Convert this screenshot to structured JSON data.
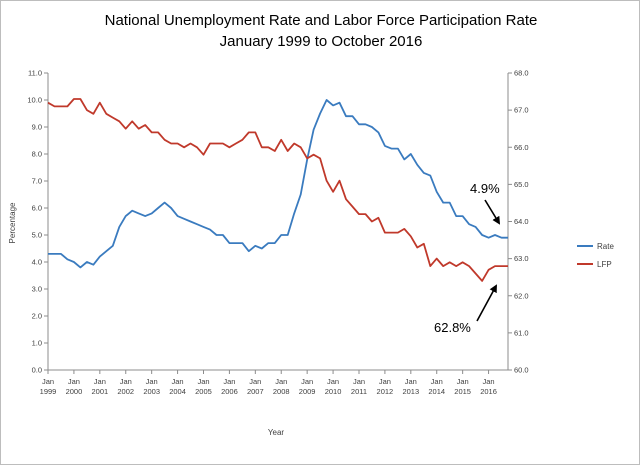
{
  "chart_data": {
    "type": "line",
    "title": "National Unemployment Rate and Labor Force Participation Rate",
    "subtitle": "January 1999 to October 2016",
    "xlabel": "Year",
    "ylabel": "Percentage",
    "x_start": "1999-01",
    "x_end": "2016-10",
    "x_ticks": [
      {
        "month": "Jan",
        "year": "1999"
      },
      {
        "month": "Jan",
        "year": "2000"
      },
      {
        "month": "Jan",
        "year": "2001"
      },
      {
        "month": "Jan",
        "year": "2002"
      },
      {
        "month": "Jan",
        "year": "2003"
      },
      {
        "month": "Jan",
        "year": "2004"
      },
      {
        "month": "Jan",
        "year": "2005"
      },
      {
        "month": "Jan",
        "year": "2006"
      },
      {
        "month": "Jan",
        "year": "2007"
      },
      {
        "month": "Jan",
        "year": "2008"
      },
      {
        "month": "Jan",
        "year": "2009"
      },
      {
        "month": "Jan",
        "year": "2010"
      },
      {
        "month": "Jan",
        "year": "2011"
      },
      {
        "month": "Jan",
        "year": "2012"
      },
      {
        "month": "Jan",
        "year": "2013"
      },
      {
        "month": "Jan",
        "year": "2014"
      },
      {
        "month": "Jan",
        "year": "2015"
      },
      {
        "month": "Jan",
        "year": "2016"
      }
    ],
    "y_left": {
      "range": [
        0,
        11
      ],
      "ticks": [
        "0.0",
        "1.0",
        "2.0",
        "3.0",
        "4.0",
        "5.0",
        "6.0",
        "7.0",
        "8.0",
        "9.0",
        "10.0",
        "11.0"
      ]
    },
    "y_right": {
      "range": [
        60,
        68
      ],
      "ticks": [
        "60.0",
        "61.0",
        "62.0",
        "63.0",
        "64.0",
        "65.0",
        "66.0",
        "67.0",
        "68.0"
      ]
    },
    "grid": false,
    "legend_position": "right",
    "series": [
      {
        "name": "Rate",
        "axis": "left",
        "color": "#3a7bbf",
        "points": [
          [
            "1999-01",
            4.3
          ],
          [
            "1999-04",
            4.3
          ],
          [
            "1999-07",
            4.3
          ],
          [
            "1999-10",
            4.1
          ],
          [
            "2000-01",
            4.0
          ],
          [
            "2000-04",
            3.8
          ],
          [
            "2000-07",
            4.0
          ],
          [
            "2000-10",
            3.9
          ],
          [
            "2001-01",
            4.2
          ],
          [
            "2001-04",
            4.4
          ],
          [
            "2001-07",
            4.6
          ],
          [
            "2001-10",
            5.3
          ],
          [
            "2002-01",
            5.7
          ],
          [
            "2002-04",
            5.9
          ],
          [
            "2002-07",
            5.8
          ],
          [
            "2002-10",
            5.7
          ],
          [
            "2003-01",
            5.8
          ],
          [
            "2003-04",
            6.0
          ],
          [
            "2003-07",
            6.2
          ],
          [
            "2003-10",
            6.0
          ],
          [
            "2004-01",
            5.7
          ],
          [
            "2004-04",
            5.6
          ],
          [
            "2004-07",
            5.5
          ],
          [
            "2004-10",
            5.4
          ],
          [
            "2005-01",
            5.3
          ],
          [
            "2005-04",
            5.2
          ],
          [
            "2005-07",
            5.0
          ],
          [
            "2005-10",
            5.0
          ],
          [
            "2006-01",
            4.7
          ],
          [
            "2006-04",
            4.7
          ],
          [
            "2006-07",
            4.7
          ],
          [
            "2006-10",
            4.4
          ],
          [
            "2007-01",
            4.6
          ],
          [
            "2007-04",
            4.5
          ],
          [
            "2007-07",
            4.7
          ],
          [
            "2007-10",
            4.7
          ],
          [
            "2008-01",
            5.0
          ],
          [
            "2008-04",
            5.0
          ],
          [
            "2008-07",
            5.8
          ],
          [
            "2008-10",
            6.5
          ],
          [
            "2009-01",
            7.8
          ],
          [
            "2009-04",
            8.9
          ],
          [
            "2009-07",
            9.5
          ],
          [
            "2009-10",
            10.0
          ],
          [
            "2010-01",
            9.8
          ],
          [
            "2010-04",
            9.9
          ],
          [
            "2010-07",
            9.4
          ],
          [
            "2010-10",
            9.4
          ],
          [
            "2011-01",
            9.1
          ],
          [
            "2011-04",
            9.1
          ],
          [
            "2011-07",
            9.0
          ],
          [
            "2011-10",
            8.8
          ],
          [
            "2012-01",
            8.3
          ],
          [
            "2012-04",
            8.2
          ],
          [
            "2012-07",
            8.2
          ],
          [
            "2012-10",
            7.8
          ],
          [
            "2013-01",
            8.0
          ],
          [
            "2013-04",
            7.6
          ],
          [
            "2013-07",
            7.3
          ],
          [
            "2013-10",
            7.2
          ],
          [
            "2014-01",
            6.6
          ],
          [
            "2014-04",
            6.2
          ],
          [
            "2014-07",
            6.2
          ],
          [
            "2014-10",
            5.7
          ],
          [
            "2015-01",
            5.7
          ],
          [
            "2015-04",
            5.4
          ],
          [
            "2015-07",
            5.3
          ],
          [
            "2015-10",
            5.0
          ],
          [
            "2016-01",
            4.9
          ],
          [
            "2016-04",
            5.0
          ],
          [
            "2016-07",
            4.9
          ],
          [
            "2016-10",
            4.9
          ]
        ]
      },
      {
        "name": "LFP",
        "axis": "right",
        "color": "#c0392b",
        "points": [
          [
            "1999-01",
            67.2
          ],
          [
            "1999-04",
            67.1
          ],
          [
            "1999-07",
            67.1
          ],
          [
            "1999-10",
            67.1
          ],
          [
            "2000-01",
            67.3
          ],
          [
            "2000-04",
            67.3
          ],
          [
            "2000-07",
            67.0
          ],
          [
            "2000-10",
            66.9
          ],
          [
            "2001-01",
            67.2
          ],
          [
            "2001-04",
            66.9
          ],
          [
            "2001-07",
            66.8
          ],
          [
            "2001-10",
            66.7
          ],
          [
            "2002-01",
            66.5
          ],
          [
            "2002-04",
            66.7
          ],
          [
            "2002-07",
            66.5
          ],
          [
            "2002-10",
            66.6
          ],
          [
            "2003-01",
            66.4
          ],
          [
            "2003-04",
            66.4
          ],
          [
            "2003-07",
            66.2
          ],
          [
            "2003-10",
            66.1
          ],
          [
            "2004-01",
            66.1
          ],
          [
            "2004-04",
            66.0
          ],
          [
            "2004-07",
            66.1
          ],
          [
            "2004-10",
            66.0
          ],
          [
            "2005-01",
            65.8
          ],
          [
            "2005-04",
            66.1
          ],
          [
            "2005-07",
            66.1
          ],
          [
            "2005-10",
            66.1
          ],
          [
            "2006-01",
            66.0
          ],
          [
            "2006-04",
            66.1
          ],
          [
            "2006-07",
            66.2
          ],
          [
            "2006-10",
            66.4
          ],
          [
            "2007-01",
            66.4
          ],
          [
            "2007-04",
            66.0
          ],
          [
            "2007-07",
            66.0
          ],
          [
            "2007-10",
            65.9
          ],
          [
            "2008-01",
            66.2
          ],
          [
            "2008-04",
            65.9
          ],
          [
            "2008-07",
            66.1
          ],
          [
            "2008-10",
            66.0
          ],
          [
            "2009-01",
            65.7
          ],
          [
            "2009-04",
            65.8
          ],
          [
            "2009-07",
            65.7
          ],
          [
            "2009-10",
            65.1
          ],
          [
            "2010-01",
            64.8
          ],
          [
            "2010-04",
            65.1
          ],
          [
            "2010-07",
            64.6
          ],
          [
            "2010-10",
            64.4
          ],
          [
            "2011-01",
            64.2
          ],
          [
            "2011-04",
            64.2
          ],
          [
            "2011-07",
            64.0
          ],
          [
            "2011-10",
            64.1
          ],
          [
            "2012-01",
            63.7
          ],
          [
            "2012-04",
            63.7
          ],
          [
            "2012-07",
            63.7
          ],
          [
            "2012-10",
            63.8
          ],
          [
            "2013-01",
            63.6
          ],
          [
            "2013-04",
            63.3
          ],
          [
            "2013-07",
            63.4
          ],
          [
            "2013-10",
            62.8
          ],
          [
            "2014-01",
            63.0
          ],
          [
            "2014-04",
            62.8
          ],
          [
            "2014-07",
            62.9
          ],
          [
            "2014-10",
            62.8
          ],
          [
            "2015-01",
            62.9
          ],
          [
            "2015-04",
            62.8
          ],
          [
            "2015-07",
            62.6
          ],
          [
            "2015-10",
            62.4
          ],
          [
            "2016-01",
            62.7
          ],
          [
            "2016-04",
            62.8
          ],
          [
            "2016-07",
            62.8
          ],
          [
            "2016-10",
            62.8
          ]
        ]
      }
    ],
    "annotations": [
      {
        "text": "4.9%",
        "series": "Rate",
        "at": "2016-10",
        "value": 4.9
      },
      {
        "text": "62.8%",
        "series": "LFP",
        "at": "2016-10",
        "value": 62.8
      }
    ]
  }
}
